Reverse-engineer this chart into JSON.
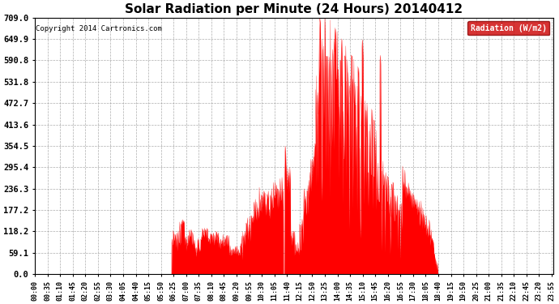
{
  "title": "Solar Radiation per Minute (24 Hours) 20140412",
  "copyright": "Copyright 2014 Cartronics.com",
  "legend_label": "Radiation (W/m2)",
  "y_ticks": [
    0.0,
    59.1,
    118.2,
    177.2,
    236.3,
    295.4,
    354.5,
    413.6,
    472.7,
    531.8,
    590.8,
    649.9,
    709.0
  ],
  "ylim": [
    0,
    709.0
  ],
  "bar_color": "#ff0000",
  "legend_bg": "#cc0000",
  "legend_text_color": "#ffffff",
  "background_color": "#ffffff",
  "grid_color": "#999999",
  "title_fontsize": 11,
  "copyright_fontsize": 6.5,
  "tick_fontsize": 6,
  "ytick_fontsize": 7.5
}
